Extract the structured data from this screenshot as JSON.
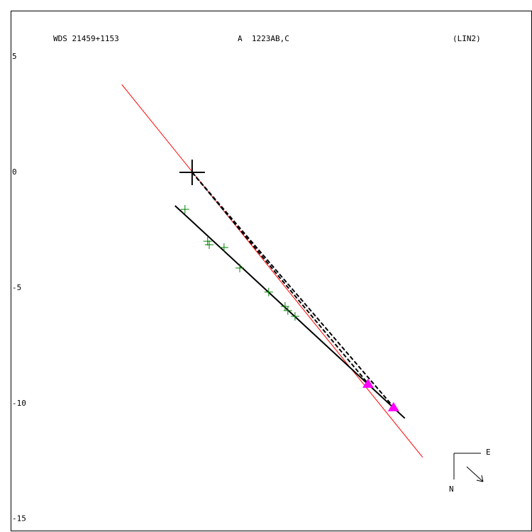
{
  "chart_data": {
    "type": "scatter",
    "title": "WDS 21459+1153",
    "subtitle": "A  1223AB,C",
    "annotation": "(LIN2)",
    "compass": {
      "east": "E",
      "north": "N"
    },
    "xlim": [
      -7.85,
      14.7
    ],
    "ylim": [
      -15.5,
      7
    ],
    "yticks": [
      5,
      0,
      -5,
      -10,
      -15
    ],
    "grid": false,
    "series": [
      {
        "marker": "line",
        "color": "#ff0000",
        "x": [
          -3.04,
          9.97
        ],
        "values": [
          3.8,
          -12.33
        ]
      },
      {
        "marker": "dashed",
        "color": "#000000",
        "x": [
          0,
          7.61
        ],
        "values": [
          0,
          -9.14
        ]
      },
      {
        "marker": "dashed",
        "color": "#000000",
        "x": [
          0,
          8.71
        ],
        "values": [
          0,
          -10.15
        ]
      },
      {
        "marker": "line",
        "color": "#000000",
        "x": [
          -0.74,
          9.2
        ],
        "values": [
          -1.44,
          -10.64
        ]
      },
      {
        "marker": "plus",
        "color": "#008000",
        "x": [
          -0.31,
          0.67,
          0.74,
          1.38,
          2.06,
          3.31,
          4.02,
          4.14,
          4.45
        ],
        "values": [
          -1.6,
          -2.98,
          -3.13,
          -3.25,
          -4.14,
          -5.18,
          -5.8,
          -5.98,
          -6.23
        ]
      },
      {
        "marker": "triangle",
        "color": "#ff00ff",
        "x": [
          7.61,
          8.71
        ],
        "values": [
          -9.14,
          -10.15
        ]
      },
      {
        "marker": "cross",
        "color": "#000000",
        "x": [
          0
        ],
        "values": [
          0
        ]
      }
    ]
  }
}
